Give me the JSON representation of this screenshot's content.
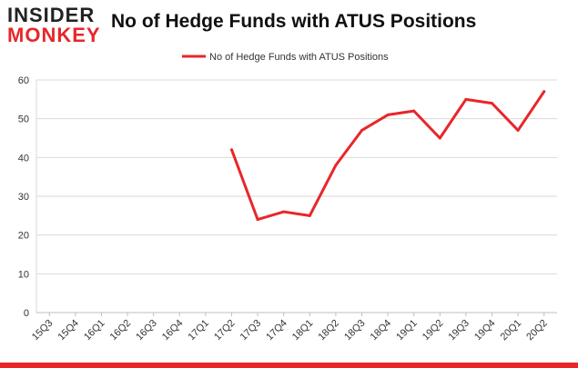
{
  "header": {
    "logo_top": "INSIDER",
    "logo_bottom": "MONKEY",
    "title": "No of Hedge Funds with ATUS Positions"
  },
  "colors": {
    "line": "#e8262a",
    "grid": "#d9d9d9",
    "brand": "#e8262a"
  },
  "chart_data": {
    "type": "line",
    "title": "No of Hedge Funds with ATUS Positions",
    "xlabel": "",
    "ylabel": "",
    "ylim": [
      0,
      60
    ],
    "yticks": [
      0,
      10,
      20,
      30,
      40,
      50,
      60
    ],
    "grid": true,
    "legend": "top-center",
    "categories": [
      "15Q3",
      "15Q4",
      "16Q1",
      "16Q2",
      "16Q3",
      "16Q4",
      "17Q1",
      "17Q2",
      "17Q3",
      "17Q4",
      "18Q1",
      "18Q2",
      "18Q3",
      "18Q4",
      "19Q1",
      "19Q2",
      "19Q3",
      "19Q4",
      "20Q1",
      "20Q2"
    ],
    "series": [
      {
        "name": "No of Hedge Funds with ATUS Positions",
        "values": [
          null,
          null,
          null,
          null,
          null,
          null,
          null,
          42,
          24,
          26,
          25,
          38,
          47,
          51,
          52,
          45,
          55,
          54,
          47,
          57
        ]
      }
    ]
  }
}
